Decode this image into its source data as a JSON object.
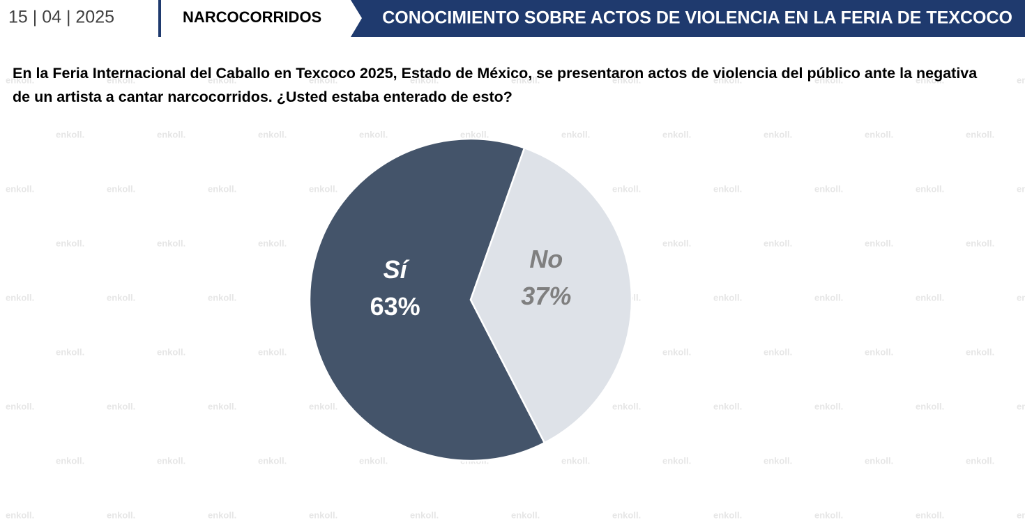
{
  "header": {
    "date": "15 | 04 | 2025",
    "section": "NARCOCORRIDOS",
    "title": "CONOCIMIENTO SOBRE ACTOS DE VIOLENCIA EN LA FERIA DE TEXCOCO"
  },
  "watermark": "enkoll.",
  "chart_data": {
    "type": "pie",
    "title": "En la Feria Internacional del Caballo en Texcoco 2025, Estado de México, se presentaron actos de violencia del público ante la negativa de un artista a cantar narcocorridos. ¿Usted estaba enterado de esto?",
    "categories": [
      "Sí",
      "No"
    ],
    "values": [
      63,
      37
    ],
    "value_labels": [
      "63%",
      "37%"
    ],
    "colors": [
      "#44546a",
      "#dee2e8"
    ],
    "label_colors": [
      "#ffffff",
      "#7f7f7f"
    ]
  }
}
